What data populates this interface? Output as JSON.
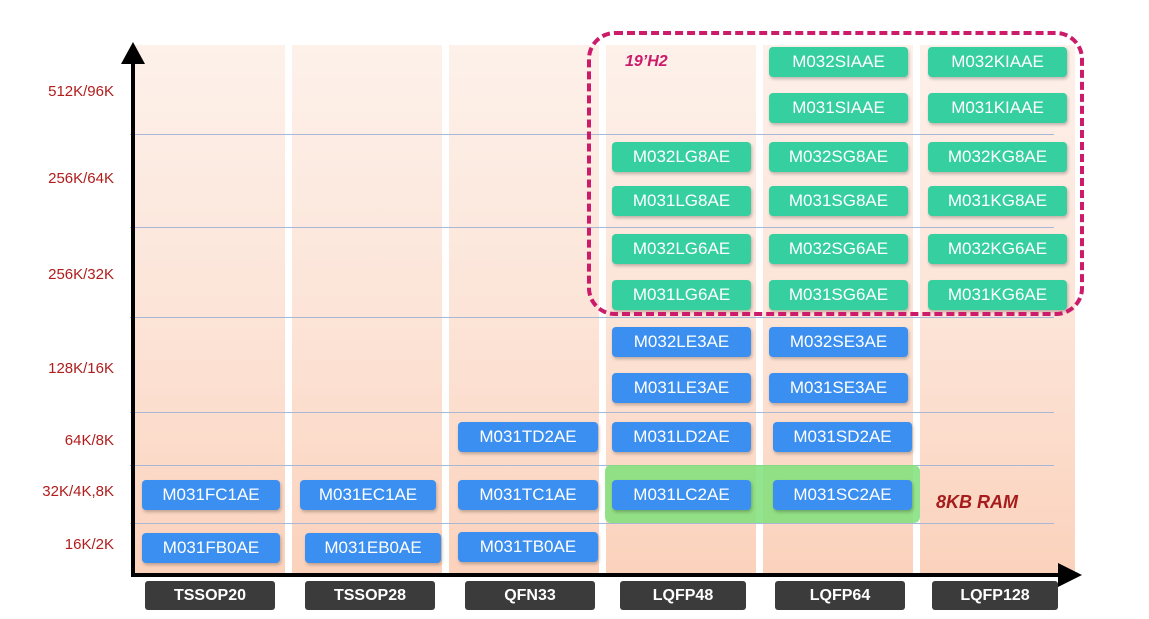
{
  "y_labels": [
    "512K/96K",
    "256K/64K",
    "256K/32K",
    "128K/16K",
    "64K/8K",
    "32K/4K,8K",
    "16K/2K"
  ],
  "packages": [
    "TSSOP20",
    "TSSOP28",
    "QFN33",
    "LQFP48",
    "LQFP64",
    "LQFP128"
  ],
  "annotations": {
    "release": "19’H2",
    "ram_note": "8KB RAM"
  },
  "colors": {
    "blue_chip": "#3b8ff0",
    "green_chip": "#35cfa0",
    "dash": "#cb1b6a",
    "ram_band": "#7fe07a"
  },
  "parts": {
    "tssop20": [
      "M031FC1AE",
      "M031FB0AE"
    ],
    "tssop28": [
      "M031EC1AE",
      "M031EB0AE"
    ],
    "qfn33": [
      "M031TD2AE",
      "M031TC1AE",
      "M031TB0AE"
    ],
    "lqfp48": [
      "M032LG8AE",
      "M031LG8AE",
      "M032LG6AE",
      "M031LG6AE",
      "M032LE3AE",
      "M031LE3AE",
      "M031LD2AE",
      "M031LC2AE"
    ],
    "lqfp64": [
      "M032SIAAE",
      "M031SIAAE",
      "M032SG8AE",
      "M031SG8AE",
      "M032SG6AE",
      "M031SG6AE",
      "M032SE3AE",
      "M031SE3AE",
      "M031SD2AE",
      "M031SC2AE"
    ],
    "lqfp128": [
      "M032KIAAE",
      "M031KIAAE",
      "M032KG8AE",
      "M031KG8AE",
      "M032KG6AE",
      "M031KG6AE"
    ]
  }
}
